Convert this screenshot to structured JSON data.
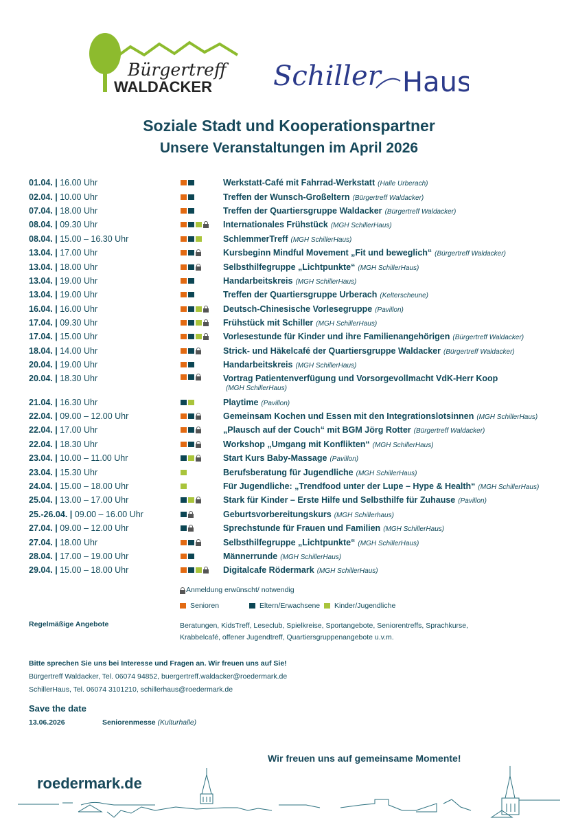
{
  "logos": {
    "left": "Bürgertreff WALDACKER",
    "right": "SchillerHaus"
  },
  "header": {
    "title": "Soziale Stadt und Kooperationspartner",
    "subtitle": "Unsere Veranstaltungen im April 2026"
  },
  "colors": {
    "senioren": "#e26a12",
    "eltern": "#0c4654",
    "kinder": "#a9c43b",
    "text": "#10495a"
  },
  "events": [
    {
      "date": "01.04. |",
      "time": "16.00 Uhr",
      "groups": [
        "o",
        "e"
      ],
      "lock": false,
      "title": "Werkstatt-Café mit Fahrrad-Werkstatt",
      "location": "(Halle Urberach)"
    },
    {
      "date": "02.04. |",
      "time": "10.00 Uhr",
      "groups": [
        "o",
        "e"
      ],
      "lock": false,
      "title": "Treffen der Wunsch-Großeltern",
      "location": "(Bürgertreff Waldacker)"
    },
    {
      "date": "07.04. |",
      "time": "18.00 Uhr",
      "groups": [
        "o",
        "e"
      ],
      "lock": false,
      "title": "Treffen der Quartiersgruppe Waldacker",
      "location": "(Bürgertreff Waldacker)"
    },
    {
      "date": "08.04. |",
      "time": "09.30 Uhr",
      "groups": [
        "o",
        "e",
        "k"
      ],
      "lock": true,
      "title": "Internationales Frühstück",
      "location": "(MGH SchillerHaus)"
    },
    {
      "date": "08.04. |",
      "time": "15.00 – 16.30 Uhr",
      "groups": [
        "o",
        "e",
        "k"
      ],
      "lock": false,
      "title": "SchlemmerTreff",
      "location": "(MGH SchillerHaus)"
    },
    {
      "date": "13.04. |",
      "time": "17.00 Uhr",
      "groups": [
        "o",
        "e"
      ],
      "lock": true,
      "title": "Kursbeginn Mindful Movement „Fit und beweglich“",
      "location": "(Bürgertreff Waldacker)"
    },
    {
      "date": "13.04. |",
      "time": "18.00 Uhr",
      "groups": [
        "o",
        "e"
      ],
      "lock": true,
      "title": "Selbsthilfegruppe „Lichtpunkte“",
      "location": "(MGH SchillerHaus)"
    },
    {
      "date": "13.04. |",
      "time": "19.00 Uhr",
      "groups": [
        "o",
        "e"
      ],
      "lock": false,
      "title": "Handarbeitskreis",
      "location": "(MGH SchillerHaus)"
    },
    {
      "date": "13.04. |",
      "time": "19.00 Uhr",
      "groups": [
        "o",
        "e"
      ],
      "lock": false,
      "title": "Treffen der Quartiersgruppe Urberach",
      "location": "(Kelterscheune)"
    },
    {
      "date": "16.04. |",
      "time": "16.00 Uhr",
      "groups": [
        "o",
        "e",
        "k"
      ],
      "lock": true,
      "title": "Deutsch-Chinesische Vorlesegruppe",
      "location": "(Pavillon)"
    },
    {
      "date": "17.04. |",
      "time": "09.30 Uhr",
      "groups": [
        "o",
        "e",
        "k"
      ],
      "lock": true,
      "title": "Frühstück mit Schiller",
      "location": "(MGH SchillerHaus)"
    },
    {
      "date": "17.04. |",
      "time": "15.00 Uhr",
      "groups": [
        "o",
        "e",
        "k"
      ],
      "lock": true,
      "title": "Vorlesestunde für Kinder und ihre Familienangehörigen",
      "location": "(Bürgertreff Waldacker)"
    },
    {
      "date": "18.04. |",
      "time": "14.00 Uhr",
      "groups": [
        "o",
        "e"
      ],
      "lock": true,
      "title": "Strick- und Häkelcafé der Quartiersgruppe Waldacker",
      "location": "(Bürgertreff Waldacker)"
    },
    {
      "date": "20.04. |",
      "time": "19.00 Uhr",
      "groups": [
        "o",
        "e"
      ],
      "lock": false,
      "title": "Handarbeitskreis",
      "location": "(MGH SchillerHaus)"
    },
    {
      "date": "20.04. |",
      "time": "18.30 Uhr",
      "groups": [
        "o",
        "e"
      ],
      "lock": true,
      "title": "Vortrag Patientenverfügung und Vorsorgevollmacht VdK-Herr Koop",
      "location": "(MGH SchillerHaus)",
      "wrap": true
    },
    {
      "date": "21.04. |",
      "time": "16.30 Uhr",
      "groups": [
        "e",
        "k"
      ],
      "lock": false,
      "title": "Playtime",
      "location": "(Pavillon)"
    },
    {
      "date": "22.04. |",
      "time": "09.00 – 12.00 Uhr",
      "groups": [
        "o",
        "e"
      ],
      "lock": true,
      "title": "Gemeinsam Kochen und Essen mit den Integrationslotsinnen",
      "location": "(MGH SchillerHaus)"
    },
    {
      "date": "22.04. |",
      "time": "17.00 Uhr",
      "groups": [
        "o",
        "e"
      ],
      "lock": true,
      "title": "„Plausch auf der Couch“ mit BGM Jörg Rotter",
      "location": "(Bürgertreff Waldacker)"
    },
    {
      "date": "22.04. |",
      "time": "18.30 Uhr",
      "groups": [
        "o",
        "e"
      ],
      "lock": true,
      "title": "Workshop „Umgang mit Konflikten“",
      "location": "(MGH SchillerHaus)"
    },
    {
      "date": "23.04. |",
      "time": "10.00 – 11.00 Uhr",
      "groups": [
        "e",
        "k"
      ],
      "lock": true,
      "title": "Start Kurs Baby-Massage",
      "location": "(Pavillon)"
    },
    {
      "date": "23.04. |",
      "time": "15.30 Uhr",
      "groups": [
        "k"
      ],
      "lock": false,
      "title": "Berufsberatung für Jugendliche",
      "location": "(MGH SchillerHaus)"
    },
    {
      "date": "24.04. |",
      "time": "15.00 – 18.00 Uhr",
      "groups": [
        "k"
      ],
      "lock": false,
      "title": "Für Jugendliche: „Trendfood unter der Lupe – Hype & Health“",
      "location": "(MGH SchillerHaus)"
    },
    {
      "date": "25.04. |",
      "time": "13.00 – 17.00 Uhr",
      "groups": [
        "e",
        "k"
      ],
      "lock": true,
      "title": "Stark für Kinder – Erste Hilfe und Selbsthilfe für Zuhause",
      "location": "(Pavillon)"
    },
    {
      "date": "25.-26.04. |",
      "time": "09.00 – 16.00 Uhr",
      "groups": [
        "e"
      ],
      "lock": true,
      "title": "Geburtsvorbereitungskurs",
      "location": "(MGH Schillerhaus)"
    },
    {
      "date": "27.04. |",
      "time": "09.00 – 12.00 Uhr",
      "groups": [
        "e"
      ],
      "lock": true,
      "title": "Sprechstunde für Frauen und Familien",
      "location": "(MGH SchillerHaus)"
    },
    {
      "date": "27.04. |",
      "time": "18.00 Uhr",
      "groups": [
        "o",
        "e"
      ],
      "lock": true,
      "title": "Selbsthilfegruppe „Lichtpunkte“",
      "location": "(MGH SchillerHaus)"
    },
    {
      "date": "28.04. |",
      "time": "17.00 – 19.00 Uhr",
      "groups": [
        "o",
        "e"
      ],
      "lock": false,
      "title": "Männerrunde",
      "location": "(MGH SchillerHaus)"
    },
    {
      "date": "29.04. |",
      "time": "15.00 – 18.00 Uhr",
      "groups": [
        "o",
        "e",
        "k"
      ],
      "lock": true,
      "title": "Digitalcafe Rödermark",
      "location": "(MGH SchillerHaus)"
    }
  ],
  "legend": {
    "lock_text": "Anmeldung erwünscht/ notwendig",
    "senioren": "Senioren",
    "eltern": "Eltern/Erwachsene",
    "kinder": "Kinder/Jugendliche"
  },
  "regular": {
    "label": "Regelmäßige Angebote",
    "text": "Beratungen, KidsTreff, Leseclub, Spielkreise, Sportangebote, Seniorentreffs, Sprachkurse, Krabbelcafé, offener Jugendtreff, Quartiersgruppenangebote u.v.m."
  },
  "contact": {
    "intro": "Bitte sprechen Sie uns bei Interesse und Fragen an. Wir freuen uns auf Sie!",
    "line1": "Bürgertreff Waldacker, Tel. 06074 94852, buergertreff.waldacker@roedermark.de",
    "line2": "SchillerHaus, Tel. 06074 3101210, schillerhaus@roedermark.de"
  },
  "save_the_date": {
    "title": "Save the date",
    "date": "13.06.2026",
    "event": "Seniorenmesse",
    "location": "(Kulturhalle)"
  },
  "footer": {
    "motto": "Wir freuen uns auf gemeinsame Momente!",
    "site": "roedermark.de"
  }
}
